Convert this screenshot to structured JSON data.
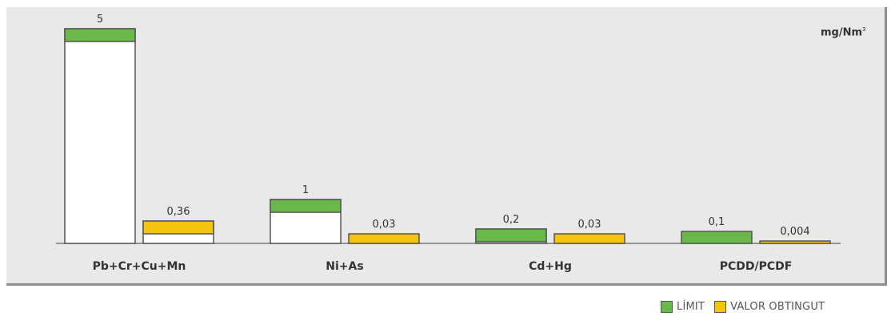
{
  "unit": {
    "text": "mg/Nm",
    "sup": "3"
  },
  "legend": [
    {
      "label": "LÍMIT",
      "color": "#6ab84a"
    },
    {
      "label": "VALOR OBTINGUT",
      "color": "#f5c40f"
    }
  ],
  "chart_data": {
    "type": "bar",
    "categories": [
      "Pb+Cr+Cu+Mn",
      "Ni+As",
      "Cd+Hg",
      "PCDD/PCDF"
    ],
    "series": [
      {
        "name": "LÍMIT",
        "values": [
          5,
          1,
          0.2,
          0.1
        ],
        "labels": [
          "5",
          "1",
          "0,2",
          "0,1"
        ],
        "color": "#6ab84a"
      },
      {
        "name": "VALOR OBTINGUT",
        "values": [
          0.36,
          0.03,
          0.03,
          0.004
        ],
        "labels": [
          "0,36",
          "0,03",
          "0,03",
          "0,004"
        ],
        "color": "#f5c40f"
      }
    ],
    "ylabel": "mg/Nm³",
    "grid": false,
    "legend_position": "bottom-right"
  }
}
